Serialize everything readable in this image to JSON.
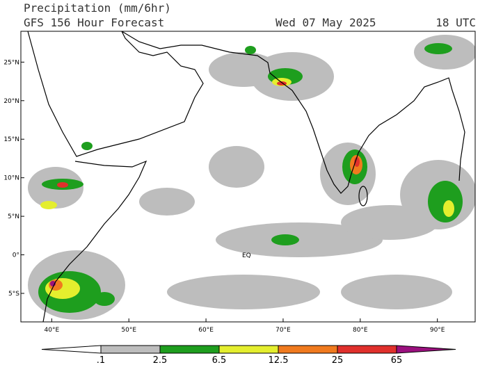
{
  "header": {
    "title": "Precipitation (mm/6hr)",
    "subtitle": "GFS 156 Hour Forecast",
    "date": "Wed 07 May 2025",
    "time": "18 UTC"
  },
  "map": {
    "xlim": [
      36,
      94.9
    ],
    "ylim": [
      -8.7,
      29
    ],
    "lon_ticks": [
      {
        "value": 40,
        "label": "40°E"
      },
      {
        "value": 50,
        "label": "50°E"
      },
      {
        "value": 60,
        "label": "60°E"
      },
      {
        "value": 70,
        "label": "70°E"
      },
      {
        "value": 80,
        "label": "80°E"
      },
      {
        "value": 90,
        "label": "90°E"
      }
    ],
    "lat_ticks": [
      {
        "value": 25,
        "label": "25°N"
      },
      {
        "value": 20,
        "label": "20°N"
      },
      {
        "value": 15,
        "label": "15°N"
      },
      {
        "value": 10,
        "label": "10°N"
      },
      {
        "value": 5,
        "label": "5°N"
      },
      {
        "value": 0,
        "label": "0°"
      },
      {
        "value": -5,
        "label": "5°S"
      }
    ],
    "equator_label": "EQ"
  },
  "colorbar": {
    "levels": [
      {
        "value": 0.1,
        "label": ".1"
      },
      2.5,
      6.5,
      12.5,
      25,
      65
    ],
    "colors": [
      "#ffffff",
      "#bdbdbd",
      "#1e9e1e",
      "#e4ee2e",
      "#f07a1e",
      "#e0302c",
      "#9a107e"
    ]
  }
}
